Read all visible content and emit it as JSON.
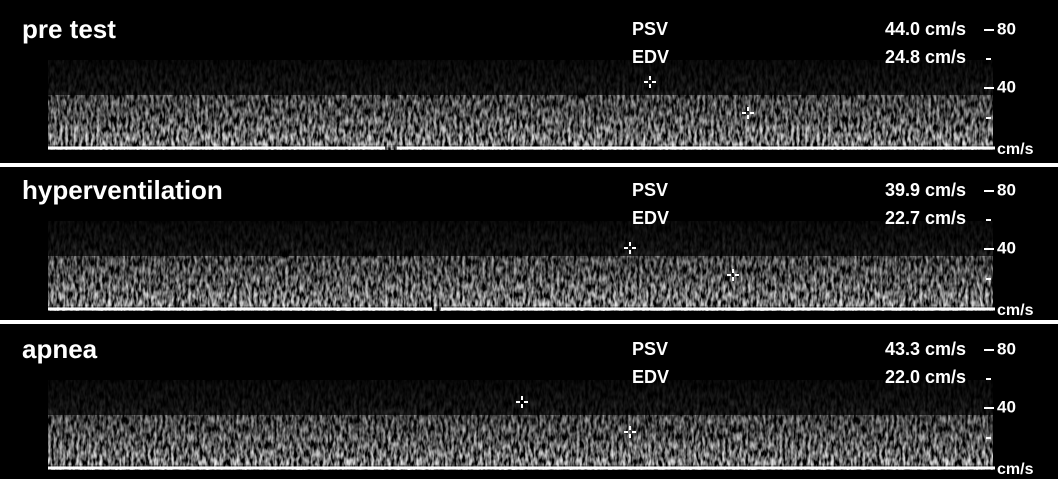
{
  "panels": [
    {
      "label": "pre test",
      "psv_label": "PSV",
      "psv": "44.0 cm/s",
      "edv_label": "EDV",
      "edv": "24.8 cm/s",
      "scale": [
        "80",
        "40"
      ],
      "unit": "cm/s"
    },
    {
      "label": "hyperventilation",
      "psv_label": "PSV",
      "psv": "39.9 cm/s",
      "edv_label": "EDV",
      "edv": "22.7 cm/s",
      "scale": [
        "80",
        "40"
      ],
      "unit": "cm/s"
    },
    {
      "label": "apnea",
      "psv_label": "PSV",
      "psv": "43.3 cm/s",
      "edv_label": "EDV",
      "edv": "22.0 cm/s",
      "scale": [
        "80",
        "40"
      ],
      "unit": "cm/s"
    }
  ]
}
